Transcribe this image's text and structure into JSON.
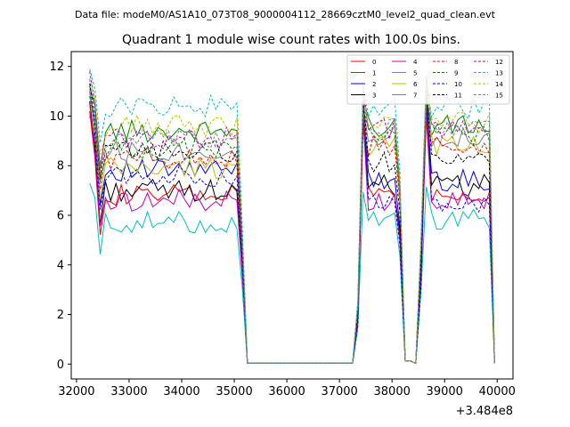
{
  "chart_data": {
    "type": "line",
    "suptitle": "Data file: modeM0/AS1A10_073T08_9000004112_28669cztM0_level2_quad_clean.evt",
    "title": "Quadrant 1 module wise count rates with 100.0s bins.",
    "xlabel": "",
    "ylabel": "",
    "x_offset_label": "+3.484e8",
    "xlim": [
      31900,
      40300
    ],
    "ylim": [
      -0.6,
      12.6
    ],
    "xticks": [
      32000,
      33000,
      34000,
      35000,
      36000,
      37000,
      38000,
      39000,
      40000
    ],
    "xtick_labels": [
      "32000",
      "33000",
      "34000",
      "35000",
      "36000",
      "37000",
      "38000",
      "39000",
      "40000"
    ],
    "yticks": [
      0,
      2,
      4,
      6,
      8,
      10,
      12
    ],
    "ytick_labels": [
      "0",
      "2",
      "4",
      "6",
      "8",
      "10",
      "12"
    ],
    "legend_position": "top-right",
    "legend_columns": 4,
    "x": [
      32250,
      32350,
      32450,
      32550,
      32650,
      32750,
      32850,
      32950,
      33050,
      33150,
      33250,
      33350,
      33450,
      33550,
      33650,
      33750,
      33850,
      33950,
      34050,
      34150,
      34250,
      34350,
      34450,
      34550,
      34650,
      34750,
      34850,
      34950,
      35050,
      35150,
      35250,
      35350,
      35450,
      35550,
      35650,
      35750,
      35850,
      35950,
      36050,
      36150,
      36250,
      36350,
      36450,
      36550,
      36650,
      36750,
      36850,
      36950,
      37050,
      37150,
      37250,
      37350,
      37450,
      37550,
      37650,
      37750,
      37850,
      37950,
      38050,
      38150,
      38250,
      38350,
      38450,
      38550,
      38650,
      38750,
      38850,
      38950,
      39050,
      39150,
      39250,
      39350,
      39450,
      39550,
      39650,
      39750,
      39850,
      39950
    ],
    "active_mask": [
      1,
      1,
      1,
      1,
      1,
      1,
      1,
      1,
      1,
      1,
      1,
      1,
      1,
      1,
      1,
      1,
      1,
      1,
      1,
      1,
      1,
      1,
      1,
      1,
      1,
      1,
      1,
      1,
      1,
      1,
      0,
      0,
      0,
      0,
      0,
      0,
      0,
      0,
      0,
      0,
      0,
      0,
      0,
      0,
      0,
      0,
      0,
      0,
      0,
      0,
      0,
      1,
      1,
      1,
      1,
      1,
      1,
      1,
      1,
      1,
      0,
      0,
      0,
      1,
      1,
      1,
      1,
      1,
      1,
      1,
      1,
      1,
      1,
      1,
      1,
      1,
      1,
      0
    ],
    "series": [
      {
        "name": "0",
        "color": "#ff0000",
        "dash": "solid",
        "level1": 6.8,
        "level2": 6.8,
        "spike": 10.2,
        "endv": 4.8
      },
      {
        "name": "1",
        "color": "#008000",
        "dash": "solid",
        "level1": 9.4,
        "level2": 9.6,
        "spike": 11.2,
        "endv": 6.6
      },
      {
        "name": "2",
        "color": "#0000ff",
        "dash": "solid",
        "level1": 7.8,
        "level2": 7.4,
        "spike": 11.0,
        "endv": 4.4
      },
      {
        "name": "3",
        "color": "#000000",
        "dash": "solid",
        "level1": 7.0,
        "level2": 7.2,
        "spike": 10.6,
        "endv": 5.8
      },
      {
        "name": "4",
        "color": "#bf00bf",
        "dash": "solid",
        "level1": 6.6,
        "level2": 6.6,
        "spike": 10.5,
        "endv": 5.2
      },
      {
        "name": "5",
        "color": "#00bfbf",
        "dash": "solid",
        "level1": 5.7,
        "level2": 5.8,
        "spike": 7.3,
        "endv": 4.6
      },
      {
        "name": "6",
        "color": "#bfbf00",
        "dash": "solid",
        "level1": 7.9,
        "level2": 8.8,
        "spike": 10.8,
        "endv": 5.9
      },
      {
        "name": "7",
        "color": "#808080",
        "dash": "solid",
        "level1": 8.6,
        "level2": 9.2,
        "spike": 11.0,
        "endv": 6.5
      },
      {
        "name": "8",
        "color": "#ff0000",
        "dash": "dashed",
        "level1": 8.3,
        "level2": 8.8,
        "spike": 10.0,
        "endv": 5.0
      },
      {
        "name": "9",
        "color": "#008000",
        "dash": "dashed",
        "level1": 8.7,
        "level2": 9.3,
        "spike": 10.8,
        "endv": 6.2
      },
      {
        "name": "10",
        "color": "#0000ff",
        "dash": "dashed",
        "level1": 7.6,
        "level2": 6.4,
        "spike": 11.5,
        "endv": 4.2
      },
      {
        "name": "11",
        "color": "#000000",
        "dash": "dashed",
        "level1": 8.6,
        "level2": 8.2,
        "spike": 11.3,
        "endv": 5.9
      },
      {
        "name": "12",
        "color": "#bf00bf",
        "dash": "dashed",
        "level1": 9.1,
        "level2": 9.5,
        "spike": 11.8,
        "endv": 6.7
      },
      {
        "name": "13",
        "color": "#00bfbf",
        "dash": "dashed",
        "level1": 10.4,
        "level2": 10.3,
        "spike": 11.9,
        "endv": 6.2
      },
      {
        "name": "14",
        "color": "#bfbf00",
        "dash": "dashed",
        "level1": 9.6,
        "level2": 9.7,
        "spike": 11.5,
        "endv": 6.8
      },
      {
        "name": "15",
        "color": "#808080",
        "dash": "dashed",
        "level1": 9.0,
        "level2": 9.5,
        "spike": 11.1,
        "endv": 6.0
      }
    ]
  }
}
